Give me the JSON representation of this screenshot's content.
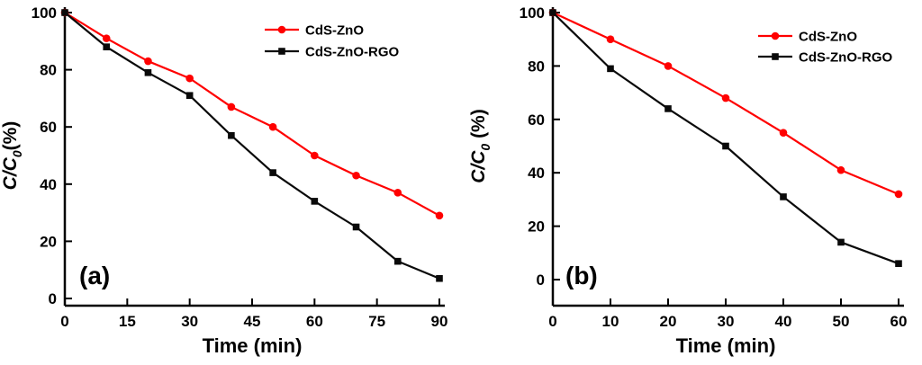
{
  "figure": {
    "background": "#ffffff",
    "text_color": "#000000"
  },
  "chart_data": [
    {
      "type": "line",
      "panel_label": "(a)",
      "title": "",
      "xlabel": "Time (min)",
      "ylabel": {
        "italic_part": "C/C",
        "subscript": "0",
        "rest": "(%)"
      },
      "xlim": [
        0,
        90
      ],
      "ylim": [
        0,
        100
      ],
      "xticks": [
        0,
        15,
        30,
        45,
        60,
        75,
        90
      ],
      "yticks": [
        0,
        20,
        40,
        60,
        80,
        100
      ],
      "grid": false,
      "legend_position": "top-right",
      "x": [
        0,
        10,
        20,
        30,
        40,
        50,
        60,
        70,
        80,
        90
      ],
      "series": [
        {
          "name": "CdS-ZnO",
          "color": "#ff0000",
          "marker": "circle",
          "values": [
            100,
            91,
            83,
            77,
            67,
            60,
            50,
            43,
            37,
            29
          ]
        },
        {
          "name": "CdS-ZnO-RGO",
          "color": "#0a0a0a",
          "marker": "square",
          "values": [
            100,
            88,
            79,
            71,
            57,
            44,
            34,
            25,
            13,
            7
          ]
        }
      ]
    },
    {
      "type": "line",
      "panel_label": "(b)",
      "title": "",
      "xlabel": "Time (min)",
      "ylabel": {
        "italic_part": "C/C",
        "subscript": "0",
        "rest": " (%)"
      },
      "xlim": [
        0,
        60
      ],
      "ylim": [
        0,
        100
      ],
      "xticks": [
        0,
        10,
        20,
        30,
        40,
        50,
        60
      ],
      "yticks": [
        0,
        20,
        40,
        60,
        80,
        100
      ],
      "grid": false,
      "legend_position": "top-right",
      "x": [
        0,
        10,
        20,
        30,
        40,
        50,
        60
      ],
      "series": [
        {
          "name": "CdS-ZnO",
          "color": "#ff0000",
          "marker": "circle",
          "values": [
            100,
            90,
            80,
            68,
            55,
            41,
            32
          ]
        },
        {
          "name": "CdS-ZnO-RGO",
          "color": "#0a0a0a",
          "marker": "square",
          "values": [
            100,
            79,
            64,
            50,
            31,
            14,
            6
          ]
        }
      ]
    }
  ]
}
